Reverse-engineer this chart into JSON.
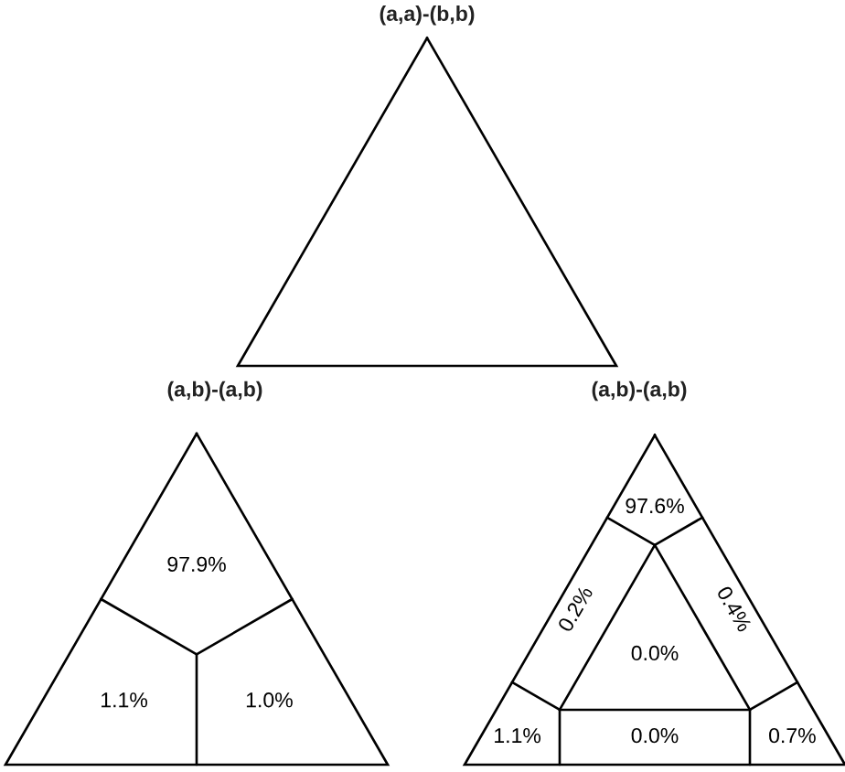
{
  "chart_data": [
    {
      "type": "other",
      "categories": [
        "(a,a)-(b,b)",
        "(a,b)-(a,b)",
        "(a,b)-(a,b)"
      ]
    },
    {
      "type": "other",
      "values": [
        97.9,
        1.1,
        1.0
      ],
      "value_labels": [
        "97.9%",
        "1.1%",
        "1.0%"
      ]
    },
    {
      "type": "other",
      "values": [
        97.6,
        0.2,
        0.4,
        0.0,
        1.1,
        0.0,
        0.7
      ],
      "value_labels": [
        "97.6%",
        "0.2%",
        "0.4%",
        "0.0%",
        "1.1%",
        "0.0%",
        "0.7%"
      ]
    }
  ]
}
